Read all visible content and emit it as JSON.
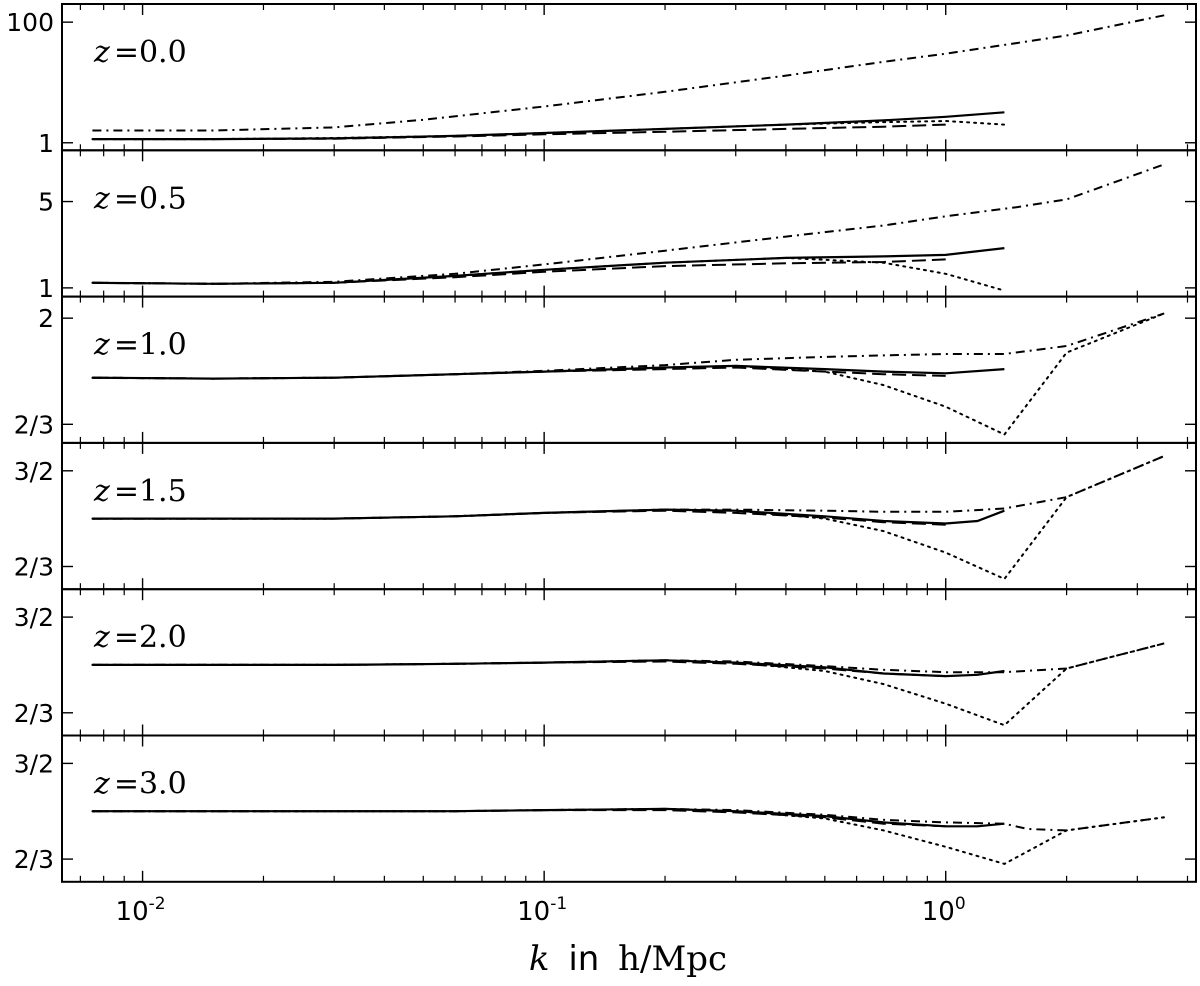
{
  "chart_data": {
    "type": "line",
    "xlabel_var": "k",
    "xlabel_word": "in",
    "xlabel_unit": "h/Mpc",
    "xscale": "log",
    "xlim": [
      0.0063,
      4.2
    ],
    "xticks": [
      {
        "base": "10",
        "exp": "-2",
        "value": 0.01
      },
      {
        "base": "10",
        "exp": "-1",
        "value": 0.1
      },
      {
        "base": "10",
        "exp": "0",
        "value": 1.0
      }
    ],
    "yscale": "log",
    "line_styles": [
      "solid",
      "dashed",
      "dotted",
      "dashdot"
    ],
    "panels": [
      {
        "label": "z =0.0",
        "ylim": [
          0.75,
          200
        ],
        "yticks": [
          {
            "label": "1",
            "value": 1
          },
          {
            "label": "100",
            "value": 100
          }
        ],
        "series": [
          {
            "style": "solid",
            "x": [
              0.0075,
              0.015,
              0.03,
              0.06,
              0.1,
              0.2,
              0.4,
              0.7,
              1.0,
              1.4
            ],
            "y": [
              1.15,
              1.15,
              1.18,
              1.3,
              1.45,
              1.7,
              2.0,
              2.35,
              2.7,
              3.2
            ]
          },
          {
            "style": "dashed",
            "x": [
              0.0075,
              0.015,
              0.03,
              0.06,
              0.1,
              0.2,
              0.4,
              0.7,
              1.0
            ],
            "y": [
              1.15,
              1.15,
              1.17,
              1.27,
              1.38,
              1.52,
              1.7,
              1.85,
              2.0
            ]
          },
          {
            "style": "dotted",
            "x": [
              0.0075,
              0.015,
              0.03,
              0.06,
              0.1,
              0.2,
              0.4,
              0.7,
              1.0,
              1.4
            ],
            "y": [
              1.15,
              1.15,
              1.2,
              1.3,
              1.45,
              1.7,
              2.0,
              2.2,
              2.3,
              2.0
            ]
          },
          {
            "style": "dashdot",
            "x": [
              0.0075,
              0.015,
              0.03,
              0.05,
              0.1,
              0.2,
              0.4,
              0.7,
              1.0,
              1.5,
              2.0,
              3.5
            ],
            "y": [
              1.6,
              1.6,
              1.8,
              2.4,
              4.0,
              7.0,
              13,
              22,
              30,
              45,
              60,
              130
            ]
          }
        ]
      },
      {
        "label": "z =0.5",
        "ylim": [
          0.85,
          13
        ],
        "yticks": [
          {
            "label": "1",
            "value": 1
          },
          {
            "label": "5",
            "value": 5
          }
        ],
        "series": [
          {
            "style": "solid",
            "x": [
              0.0075,
              0.015,
              0.03,
              0.06,
              0.1,
              0.2,
              0.4,
              0.7,
              1.0,
              1.4
            ],
            "y": [
              1.1,
              1.08,
              1.1,
              1.25,
              1.4,
              1.6,
              1.75,
              1.8,
              1.85,
              2.1
            ]
          },
          {
            "style": "dashed",
            "x": [
              0.0075,
              0.015,
              0.03,
              0.06,
              0.1,
              0.2,
              0.4,
              0.7,
              1.0
            ],
            "y": [
              1.1,
              1.08,
              1.1,
              1.22,
              1.35,
              1.5,
              1.58,
              1.62,
              1.7
            ]
          },
          {
            "style": "dotted",
            "x": [
              0.0075,
              0.015,
              0.03,
              0.06,
              0.1,
              0.2,
              0.4,
              0.7,
              1.0,
              1.4
            ],
            "y": [
              1.1,
              1.08,
              1.1,
              1.25,
              1.4,
              1.6,
              1.75,
              1.6,
              1.3,
              0.95
            ]
          },
          {
            "style": "dashdot",
            "x": [
              0.0075,
              0.015,
              0.03,
              0.06,
              0.1,
              0.2,
              0.4,
              0.7,
              1.0,
              1.5,
              2.0,
              3.5
            ],
            "y": [
              1.1,
              1.08,
              1.12,
              1.3,
              1.55,
              2.0,
              2.6,
              3.2,
              3.8,
              4.5,
              5.2,
              10.0
            ]
          }
        ]
      },
      {
        "label": "z =1.0",
        "ylim": [
          0.55,
          2.5
        ],
        "yticks": [
          {
            "label": "2/3",
            "value": 0.6667
          },
          {
            "label": "2",
            "value": 2
          }
        ],
        "series": [
          {
            "style": "solid",
            "x": [
              0.0075,
              0.015,
              0.03,
              0.06,
              0.1,
              0.2,
              0.3,
              0.5,
              0.7,
              1.0,
              1.4
            ],
            "y": [
              1.08,
              1.07,
              1.08,
              1.12,
              1.15,
              1.2,
              1.22,
              1.18,
              1.15,
              1.13,
              1.18
            ]
          },
          {
            "style": "dashed",
            "x": [
              0.0075,
              0.015,
              0.03,
              0.06,
              0.1,
              0.2,
              0.3,
              0.5,
              0.7,
              1.0
            ],
            "y": [
              1.08,
              1.07,
              1.08,
              1.12,
              1.15,
              1.18,
              1.2,
              1.15,
              1.12,
              1.1
            ]
          },
          {
            "style": "dotted",
            "x": [
              0.0075,
              0.015,
              0.03,
              0.06,
              0.1,
              0.2,
              0.3,
              0.5,
              0.7,
              1.0,
              1.4,
              2.0,
              3.5
            ],
            "y": [
              1.08,
              1.07,
              1.08,
              1.12,
              1.15,
              1.2,
              1.22,
              1.15,
              1.0,
              0.8,
              0.6,
              1.4,
              2.1
            ]
          },
          {
            "style": "dashdot",
            "x": [
              0.0075,
              0.015,
              0.03,
              0.06,
              0.1,
              0.2,
              0.3,
              0.5,
              0.7,
              1.0,
              1.4,
              2.0,
              3.5
            ],
            "y": [
              1.08,
              1.07,
              1.08,
              1.12,
              1.16,
              1.23,
              1.3,
              1.34,
              1.36,
              1.38,
              1.38,
              1.5,
              2.1
            ]
          }
        ]
      },
      {
        "label": "z =1.5",
        "ylim": [
          0.55,
          1.9
        ],
        "yticks": [
          {
            "label": "2/3",
            "value": 0.6667
          },
          {
            "label": "3/2",
            "value": 1.5
          }
        ],
        "series": [
          {
            "style": "solid",
            "x": [
              0.0075,
              0.015,
              0.03,
              0.06,
              0.1,
              0.2,
              0.3,
              0.5,
              0.7,
              1.0,
              1.2,
              1.4
            ],
            "y": [
              1.0,
              1.0,
              1.0,
              1.02,
              1.05,
              1.08,
              1.07,
              1.02,
              0.98,
              0.96,
              0.98,
              1.07
            ]
          },
          {
            "style": "dashed",
            "x": [
              0.0075,
              0.015,
              0.03,
              0.06,
              0.1,
              0.2,
              0.3,
              0.5,
              0.7,
              1.0
            ],
            "y": [
              1.0,
              1.0,
              1.0,
              1.02,
              1.05,
              1.07,
              1.05,
              1.01,
              0.97,
              0.95
            ]
          },
          {
            "style": "dotted",
            "x": [
              0.0075,
              0.015,
              0.03,
              0.06,
              0.1,
              0.2,
              0.3,
              0.5,
              0.7,
              1.0,
              1.4,
              2.0,
              3.5
            ],
            "y": [
              1.0,
              1.0,
              1.0,
              1.02,
              1.05,
              1.08,
              1.07,
              1.0,
              0.9,
              0.75,
              0.6,
              1.2,
              1.7
            ]
          },
          {
            "style": "dashdot",
            "x": [
              0.0075,
              0.015,
              0.03,
              0.06,
              0.1,
              0.2,
              0.3,
              0.5,
              0.7,
              1.0,
              1.4,
              2.0,
              3.5
            ],
            "y": [
              1.0,
              1.0,
              1.0,
              1.02,
              1.05,
              1.08,
              1.08,
              1.07,
              1.06,
              1.06,
              1.09,
              1.2,
              1.7
            ]
          }
        ]
      },
      {
        "label": "z =2.0",
        "ylim": [
          0.55,
          1.9
        ],
        "yticks": [
          {
            "label": "2/3",
            "value": 0.6667
          },
          {
            "label": "3/2",
            "value": 1.5
          }
        ],
        "series": [
          {
            "style": "solid",
            "x": [
              0.0075,
              0.015,
              0.03,
              0.06,
              0.1,
              0.2,
              0.3,
              0.5,
              0.7,
              1.0,
              1.2,
              1.4
            ],
            "y": [
              1.0,
              1.0,
              1.0,
              1.01,
              1.02,
              1.04,
              1.02,
              0.98,
              0.93,
              0.91,
              0.92,
              0.95
            ]
          },
          {
            "style": "dashed",
            "x": [
              0.0075,
              0.015,
              0.03,
              0.06,
              0.1,
              0.2,
              0.3,
              0.5,
              0.7,
              1.0
            ],
            "y": [
              1.0,
              1.0,
              1.0,
              1.01,
              1.02,
              1.03,
              1.01,
              0.97,
              0.93,
              0.91
            ]
          },
          {
            "style": "dotted",
            "x": [
              0.0075,
              0.015,
              0.03,
              0.06,
              0.1,
              0.2,
              0.3,
              0.5,
              0.7,
              1.0,
              1.4,
              2.0,
              3.5
            ],
            "y": [
              1.0,
              1.0,
              1.0,
              1.01,
              1.02,
              1.04,
              1.02,
              0.95,
              0.85,
              0.72,
              0.6,
              0.97,
              1.2
            ]
          },
          {
            "style": "dashdot",
            "x": [
              0.0075,
              0.015,
              0.03,
              0.06,
              0.1,
              0.2,
              0.3,
              0.5,
              0.7,
              1.0,
              1.4,
              2.0,
              3.5
            ],
            "y": [
              1.0,
              1.0,
              1.0,
              1.01,
              1.02,
              1.04,
              1.03,
              0.99,
              0.96,
              0.94,
              0.94,
              0.97,
              1.2
            ]
          }
        ]
      },
      {
        "label": "z =3.0",
        "ylim": [
          0.55,
          1.9
        ],
        "yticks": [
          {
            "label": "2/3",
            "value": 0.6667
          },
          {
            "label": "3/2",
            "value": 1.5
          }
        ],
        "series": [
          {
            "style": "solid",
            "x": [
              0.0075,
              0.015,
              0.03,
              0.06,
              0.1,
              0.2,
              0.3,
              0.5,
              0.7,
              1.0,
              1.2,
              1.4
            ],
            "y": [
              1.0,
              1.0,
              1.0,
              1.0,
              1.01,
              1.02,
              1.0,
              0.96,
              0.91,
              0.88,
              0.88,
              0.9
            ]
          },
          {
            "style": "dashed",
            "x": [
              0.0075,
              0.015,
              0.03,
              0.06,
              0.1,
              0.2,
              0.3,
              0.5,
              0.7,
              1.0
            ],
            "y": [
              1.0,
              1.0,
              1.0,
              1.0,
              1.01,
              1.01,
              0.99,
              0.95,
              0.9,
              0.88
            ]
          },
          {
            "style": "dotted",
            "x": [
              0.0075,
              0.015,
              0.03,
              0.06,
              0.1,
              0.2,
              0.3,
              0.5,
              0.7,
              1.0,
              1.4,
              2.0,
              3.5
            ],
            "y": [
              1.0,
              1.0,
              1.0,
              1.0,
              1.01,
              1.02,
              1.0,
              0.94,
              0.85,
              0.74,
              0.64,
              0.85,
              0.95
            ]
          },
          {
            "style": "dashdot",
            "x": [
              0.0075,
              0.015,
              0.03,
              0.06,
              0.1,
              0.2,
              0.3,
              0.5,
              0.7,
              1.0,
              1.4,
              1.6,
              2.0,
              3.5
            ],
            "y": [
              1.0,
              1.0,
              1.0,
              1.0,
              1.01,
              1.02,
              1.01,
              0.97,
              0.93,
              0.91,
              0.9,
              0.86,
              0.85,
              0.95
            ]
          }
        ]
      }
    ]
  }
}
